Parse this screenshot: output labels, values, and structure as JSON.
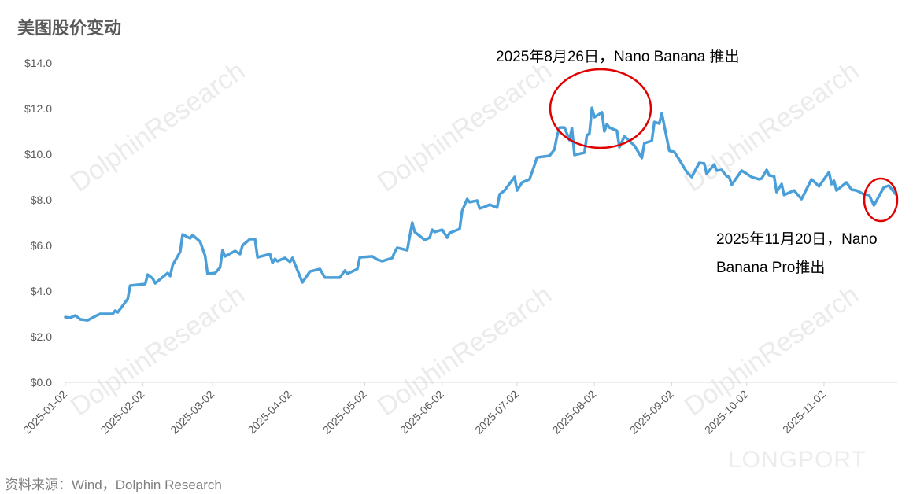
{
  "title": "美图股价变动",
  "footer": "资料来源：Wind，Dolphin Research",
  "watermark": "DolphinResearch",
  "logo_watermark": "LONGPORT",
  "colors": {
    "line": "#4a9fd8",
    "annotation": "#e00000",
    "axis": "#d9d9d9"
  },
  "chart_data": {
    "type": "line",
    "title": "美图股价变动",
    "xlabel": "",
    "ylabel": "",
    "ylim": [
      0,
      14
    ],
    "xlim": [
      "2025-01-02",
      "2025-12-03"
    ],
    "grid": false,
    "y_ticks": [
      "$0.0",
      "$2.0",
      "$4.0",
      "$6.0",
      "$8.0",
      "$10.0",
      "$12.0",
      "$14.0"
    ],
    "x_ticks": [
      "2025-01-02",
      "2025-02-02",
      "2025-03-02",
      "2025-04-02",
      "2025-05-02",
      "2025-06-02",
      "2025-07-02",
      "2025-08-02",
      "2025-09-02",
      "2025-10-02",
      "2025-11-02"
    ],
    "series": [
      {
        "x": [
          "2025-01-02",
          "2025-01-04",
          "2025-01-06",
          "2025-01-08",
          "2025-01-11",
          "2025-01-14",
          "2025-01-16",
          "2025-01-21",
          "2025-01-22",
          "2025-01-23",
          "2025-01-27",
          "2025-01-28",
          "2025-02-03",
          "2025-02-04",
          "2025-02-06",
          "2025-02-07",
          "2025-02-12",
          "2025-02-13",
          "2025-02-14",
          "2025-02-17",
          "2025-02-18",
          "2025-02-21",
          "2025-02-22",
          "2025-02-25",
          "2025-02-27",
          "2025-02-28",
          "2025-03-03",
          "2025-03-05",
          "2025-03-06",
          "2025-03-07",
          "2025-03-11",
          "2025-03-13",
          "2025-03-14",
          "2025-03-17",
          "2025-03-19",
          "2025-03-20",
          "2025-03-25",
          "2025-03-26",
          "2025-03-27",
          "2025-03-28",
          "2025-03-31",
          "2025-04-02",
          "2025-04-03",
          "2025-04-07",
          "2025-04-10",
          "2025-04-14",
          "2025-04-16",
          "2025-04-22",
          "2025-04-24",
          "2025-04-25",
          "2025-04-29",
          "2025-04-30",
          "2025-05-05",
          "2025-05-07",
          "2025-05-09",
          "2025-05-13",
          "2025-05-14",
          "2025-05-15",
          "2025-05-19",
          "2025-05-21",
          "2025-05-22",
          "2025-05-26",
          "2025-05-28",
          "2025-05-29",
          "2025-05-30",
          "2025-06-02",
          "2025-06-04",
          "2025-06-05",
          "2025-06-09",
          "2025-06-10",
          "2025-06-12",
          "2025-06-13",
          "2025-06-16",
          "2025-06-17",
          "2025-06-19",
          "2025-06-21",
          "2025-06-24",
          "2025-06-25",
          "2025-06-27",
          "2025-07-01",
          "2025-07-02",
          "2025-07-04",
          "2025-07-07",
          "2025-07-09",
          "2025-07-10",
          "2025-07-15",
          "2025-07-17",
          "2025-07-18",
          "2025-07-19",
          "2025-07-21",
          "2025-07-23",
          "2025-07-24",
          "2025-07-25",
          "2025-07-29",
          "2025-07-30",
          "2025-07-31",
          "2025-08-01",
          "2025-08-02",
          "2025-08-05",
          "2025-08-06",
          "2025-08-07",
          "2025-08-08",
          "2025-08-11",
          "2025-08-12",
          "2025-08-14",
          "2025-08-18",
          "2025-08-21",
          "2025-08-22",
          "2025-08-25",
          "2025-08-26",
          "2025-08-28",
          "2025-08-29",
          "2025-09-01",
          "2025-09-03",
          "2025-09-05",
          "2025-09-08",
          "2025-09-10",
          "2025-09-13",
          "2025-09-15",
          "2025-09-16",
          "2025-09-19",
          "2025-09-20",
          "2025-09-22",
          "2025-09-24",
          "2025-09-25",
          "2025-09-26",
          "2025-09-30",
          "2025-10-04",
          "2025-10-07",
          "2025-10-08",
          "2025-10-10",
          "2025-10-11",
          "2025-10-13",
          "2025-10-14",
          "2025-10-16",
          "2025-10-17",
          "2025-10-21",
          "2025-10-24",
          "2025-10-28",
          "2025-10-31",
          "2025-11-04",
          "2025-11-05",
          "2025-11-06",
          "2025-11-07",
          "2025-11-11",
          "2025-11-13",
          "2025-11-15",
          "2025-11-18",
          "2025-11-20",
          "2025-11-22",
          "2025-11-26",
          "2025-11-28",
          "2025-12-01"
        ],
        "values": [
          2.86,
          2.83,
          2.93,
          2.76,
          2.72,
          2.9,
          3.0,
          3.0,
          3.14,
          3.07,
          3.66,
          4.24,
          4.31,
          4.72,
          4.55,
          4.34,
          4.79,
          4.66,
          5.14,
          5.72,
          6.48,
          6.31,
          6.45,
          6.17,
          5.55,
          4.76,
          4.79,
          5.03,
          5.79,
          5.52,
          5.76,
          5.62,
          6.0,
          6.28,
          6.28,
          5.48,
          5.62,
          5.24,
          5.41,
          5.31,
          5.45,
          5.28,
          5.45,
          4.38,
          4.86,
          4.97,
          4.59,
          4.59,
          4.9,
          4.76,
          4.97,
          5.48,
          5.52,
          5.38,
          5.31,
          5.45,
          5.72,
          5.9,
          5.79,
          7.0,
          6.59,
          6.24,
          6.34,
          6.69,
          6.59,
          6.69,
          6.34,
          6.55,
          6.72,
          7.52,
          8.03,
          7.9,
          7.97,
          7.62,
          7.69,
          7.79,
          7.66,
          8.24,
          8.41,
          9.0,
          8.41,
          8.76,
          8.9,
          9.52,
          9.86,
          9.93,
          10.21,
          10.79,
          11.17,
          11.17,
          10.62,
          11.14,
          9.97,
          10.07,
          10.83,
          10.9,
          12.03,
          11.62,
          11.83,
          11.0,
          11.31,
          11.17,
          11.03,
          10.31,
          10.79,
          10.38,
          9.83,
          10.48,
          10.59,
          11.41,
          11.34,
          11.79,
          10.15,
          10.1,
          9.76,
          9.21,
          9.0,
          9.62,
          9.59,
          9.14,
          9.55,
          9.28,
          9.31,
          9.03,
          9.0,
          8.66,
          9.28,
          9.0,
          8.9,
          8.93,
          9.31,
          9.07,
          9.03,
          8.34,
          8.69,
          8.21,
          8.41,
          8.03,
          8.9,
          8.59,
          9.21,
          8.69,
          8.83,
          8.41,
          8.76,
          8.45,
          8.41,
          8.24,
          8.21,
          7.76,
          8.55,
          8.62,
          8.21
        ]
      }
    ],
    "annotations": [
      {
        "text": "2025年8月26日，Nano Banana 推出"
      },
      {
        "text_lines": [
          "2025年11月20日，Nano",
          "Banana Pro推出"
        ]
      }
    ]
  }
}
